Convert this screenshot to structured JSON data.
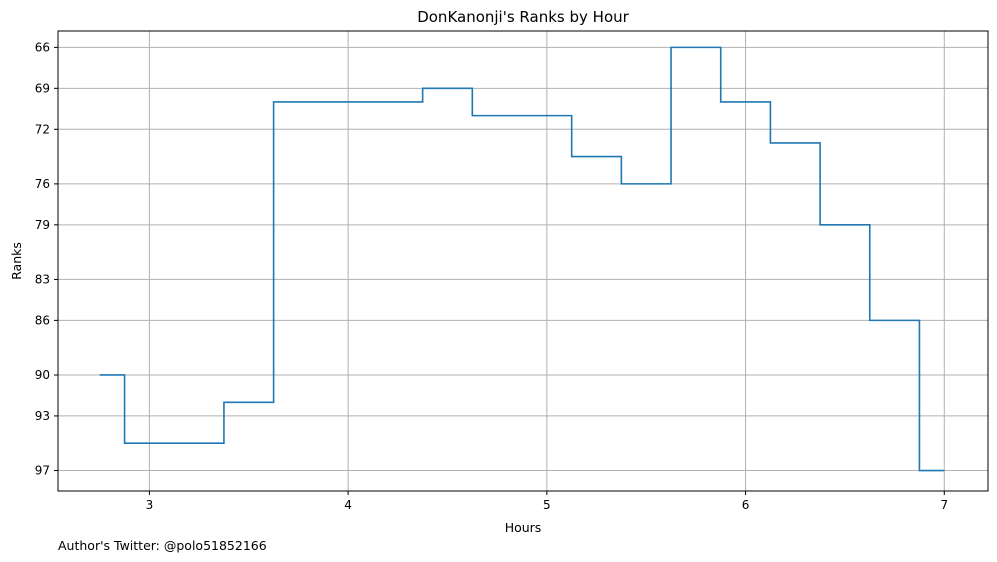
{
  "chart_data": {
    "type": "line",
    "style": "step",
    "title": "DonKanonji's Ranks by Hour",
    "xlabel": "Hours",
    "ylabel": "Ranks",
    "x_ticks": [
      3,
      4,
      5,
      6,
      7
    ],
    "y_ticks": [
      66,
      69,
      72,
      76,
      79,
      83,
      86,
      90,
      93,
      97
    ],
    "xlim": [
      2.54,
      7.22
    ],
    "ylim": [
      98.5,
      64.8
    ],
    "y_inverted": true,
    "grid": true,
    "line_color": "#1f77b4",
    "series": [
      {
        "x": [
          2.75,
          2.875,
          3.125,
          3.375,
          3.625,
          3.875,
          4.125,
          4.375,
          4.625,
          4.875,
          5.125,
          5.375,
          5.625,
          5.875,
          6.125,
          6.375,
          6.625,
          6.875,
          7.0
        ],
        "values": [
          90,
          95,
          95,
          92,
          70,
          70,
          70,
          69,
          71,
          71,
          74,
          76,
          66,
          70,
          73,
          79,
          86,
          97,
          97
        ]
      }
    ]
  },
  "footer": "Author's Twitter: @polo51852166"
}
